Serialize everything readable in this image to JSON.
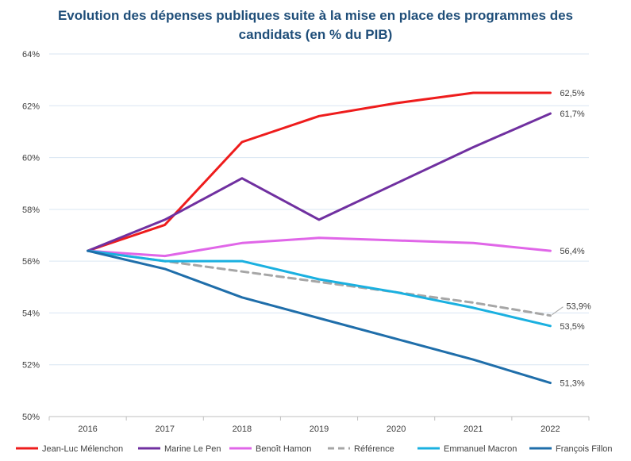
{
  "chart_data": {
    "type": "line",
    "title": "Evolution des dépenses publiques suite à la mise en place des programmes des candidats (en % du PIB)",
    "title_lines": [
      "Evolution des dépenses publiques suite à la mise en place des programmes des",
      "candidats (en % du PIB)"
    ],
    "x": [
      "2016",
      "2017",
      "2018",
      "2019",
      "2020",
      "2021",
      "2022"
    ],
    "ylim": [
      50,
      64
    ],
    "yticks": [
      50,
      52,
      54,
      56,
      58,
      60,
      62,
      64
    ],
    "ytick_labels": [
      "50%",
      "52%",
      "54%",
      "56%",
      "58%",
      "60%",
      "62%",
      "64%"
    ],
    "grid": true,
    "legend_position": "bottom",
    "series": [
      {
        "name": "Jean-Luc Mélenchon",
        "color": "#ee1c1c",
        "dashed": false,
        "values": [
          56.4,
          57.4,
          60.6,
          61.6,
          62.1,
          62.5,
          62.5
        ],
        "end_label": "62,5%"
      },
      {
        "name": "Marine Le Pen",
        "color": "#7030a0",
        "dashed": false,
        "values": [
          56.4,
          57.6,
          59.2,
          57.6,
          59.0,
          60.4,
          61.7
        ],
        "end_label": "61,7%"
      },
      {
        "name": "Benoît Hamon",
        "color": "#e066e8",
        "dashed": false,
        "values": [
          56.4,
          56.2,
          56.7,
          56.9,
          56.8,
          56.7,
          56.4
        ],
        "end_label": "56,4%"
      },
      {
        "name": "Référence",
        "color": "#a6a6a6",
        "dashed": true,
        "values": [
          56.4,
          56.0,
          55.6,
          55.2,
          54.8,
          54.4,
          53.9
        ],
        "end_label": "53,9%"
      },
      {
        "name": "Emmanuel Macron",
        "color": "#1ab0e0",
        "dashed": false,
        "values": [
          56.4,
          56.0,
          56.0,
          55.3,
          54.8,
          54.2,
          53.5
        ],
        "end_label": "53,5%"
      },
      {
        "name": "François Fillon",
        "color": "#1f6eaa",
        "dashed": false,
        "values": [
          56.4,
          55.7,
          54.6,
          53.8,
          53.0,
          52.2,
          51.3
        ],
        "end_label": "51,3%"
      }
    ]
  }
}
